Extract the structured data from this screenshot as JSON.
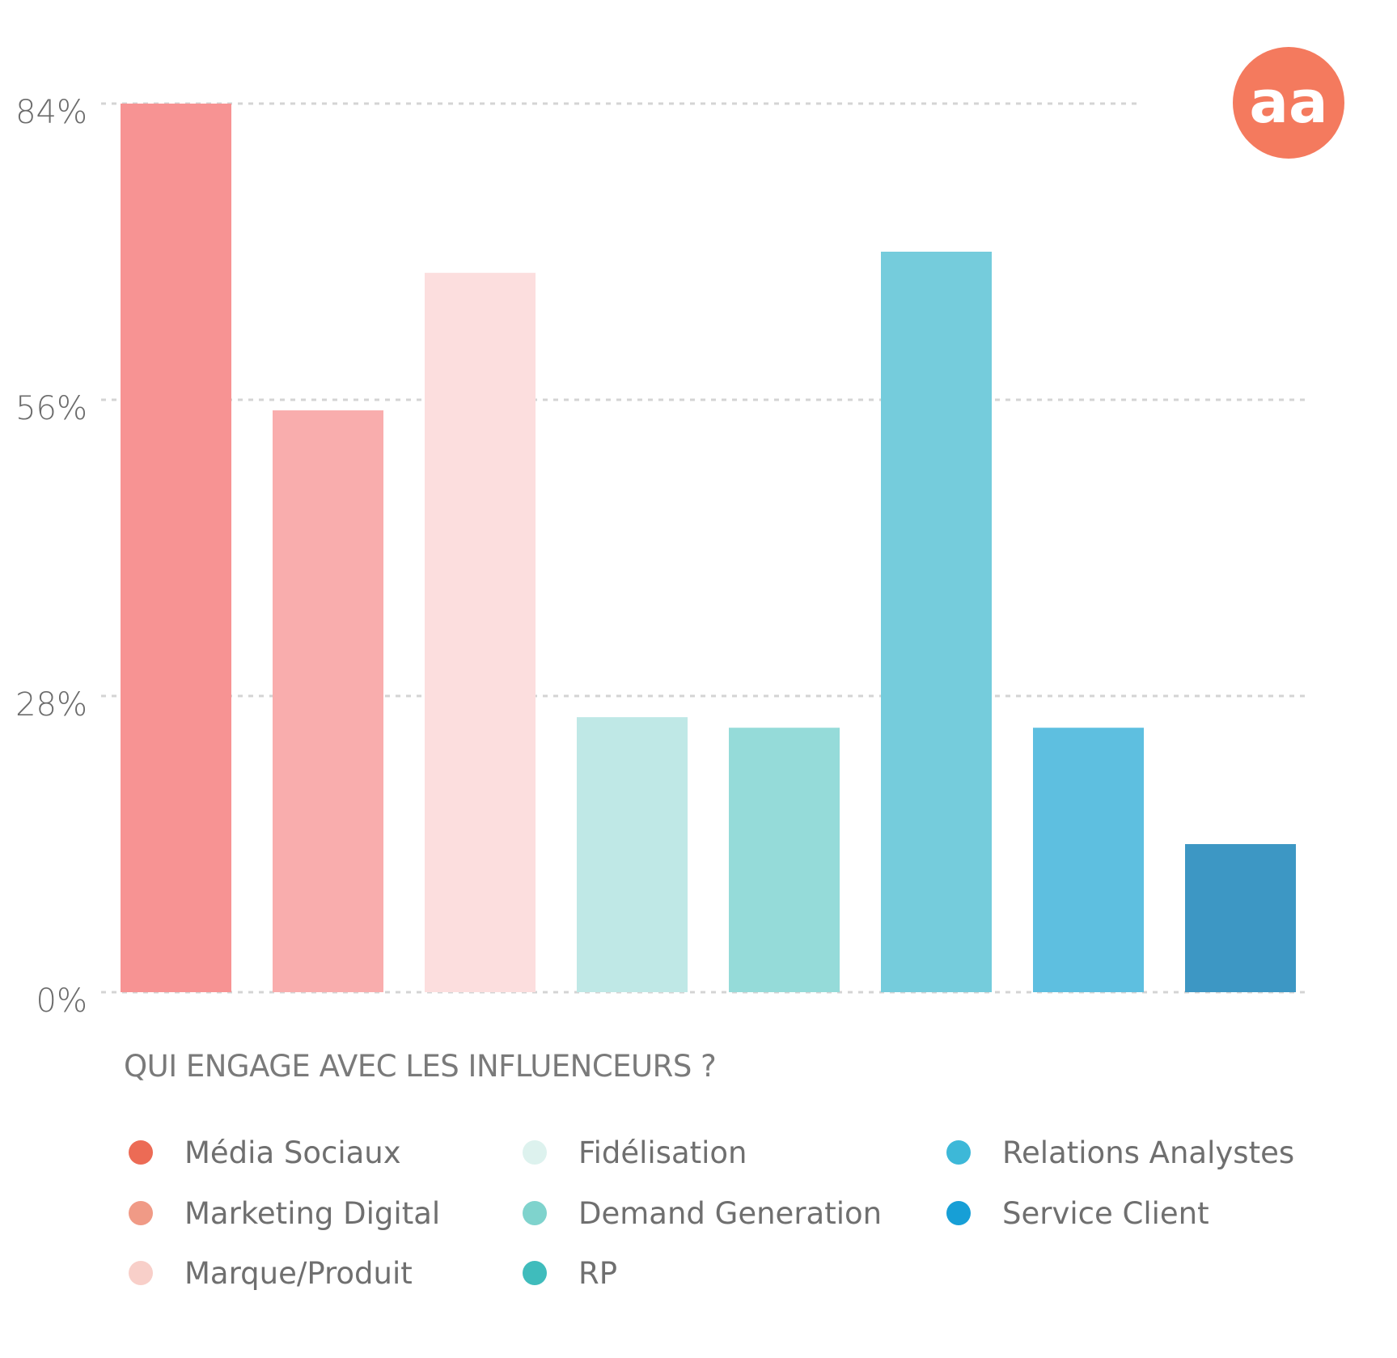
{
  "chart_data": {
    "type": "bar",
    "title": "QUI ENGAGE AVEC LES INFLUENCEURS ?",
    "categories": [
      "Média Sociaux",
      "Marketing Digital",
      "Marque/Produit",
      "Fidélisation",
      "Demand Generation",
      "Relations Analystes",
      "Service Client",
      "RP"
    ],
    "values": [
      84,
      55,
      68,
      26,
      25,
      70,
      25,
      14
    ],
    "bar_colors": [
      "#f79393",
      "#f9adad",
      "#fcdede",
      "#bfe8e6",
      "#95dbd9",
      "#75ccdc",
      "#5ebfe0",
      "#3d97c4"
    ],
    "ylim": [
      0,
      84
    ],
    "yticks": [
      0,
      28,
      56,
      84
    ],
    "ytick_labels": [
      "0%",
      "28%",
      "56%",
      "84%"
    ],
    "grid": true,
    "legend_position": "bottom",
    "legend": [
      {
        "label": "Média Sociaux",
        "color": "#ec6b55"
      },
      {
        "label": "Marketing Digital",
        "color": "#f09a86"
      },
      {
        "label": "Marque/Produit",
        "color": "#f8cfc9"
      },
      {
        "label": "Fidélisation",
        "color": "#ddf2ee"
      },
      {
        "label": "Demand Generation",
        "color": "#7fd3cd"
      },
      {
        "label": "RP",
        "color": "#3fbcbc"
      },
      {
        "label": "Relations Analystes",
        "color": "#3db8d8"
      },
      {
        "label": "Service Client",
        "color": "#179fd6"
      }
    ]
  },
  "logo": {
    "text": "aa",
    "color": "#f47a5e"
  }
}
